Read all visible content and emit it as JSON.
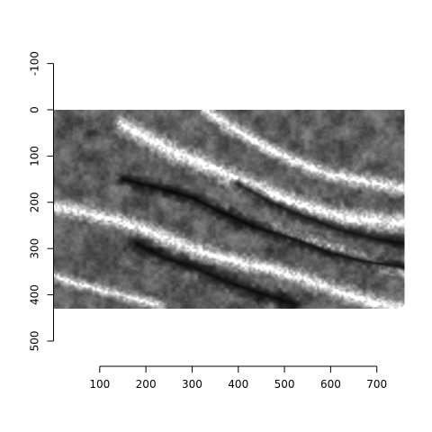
{
  "chart_data": {
    "type": "heatmap",
    "title": "",
    "xlabel": "",
    "ylabel": "",
    "colormap": "grayscale",
    "image_extent": {
      "x": [
        0,
        760
      ],
      "y": [
        0,
        430
      ]
    },
    "xlim": [
      0,
      760
    ],
    "ylim": [
      -100,
      500
    ],
    "y_reversed": true,
    "x_ticks": [
      100,
      200,
      300,
      400,
      500,
      600,
      700
    ],
    "x_tick_labels": [
      "100",
      "200",
      "300",
      "400",
      "500",
      "600",
      "700"
    ],
    "y_ticks": [
      -100,
      0,
      100,
      200,
      300,
      400,
      500
    ],
    "y_tick_labels": [
      "-100",
      "0",
      "100",
      "200",
      "300",
      "400",
      "500"
    ],
    "grid": false,
    "legend": "none",
    "cloud_bands": [
      {
        "points": [
          [
            330,
            0
          ],
          [
            390,
            40
          ],
          [
            450,
            75
          ],
          [
            520,
            110
          ],
          [
            600,
            140
          ],
          [
            700,
            160
          ],
          [
            760,
            170
          ]
        ],
        "width": 35,
        "brightness": 0.95
      },
      {
        "points": [
          [
            150,
            30
          ],
          [
            200,
            60
          ],
          [
            260,
            90
          ],
          [
            320,
            115
          ],
          [
            400,
            150
          ],
          [
            480,
            185
          ],
          [
            560,
            215
          ],
          [
            640,
            235
          ],
          [
            700,
            240
          ],
          [
            760,
            245
          ]
        ],
        "width": 45,
        "brightness": 1.0
      },
      {
        "points": [
          [
            0,
            210
          ],
          [
            60,
            220
          ],
          [
            140,
            240
          ],
          [
            210,
            265
          ],
          [
            270,
            290
          ],
          [
            330,
            310
          ],
          [
            400,
            330
          ],
          [
            470,
            345
          ],
          [
            540,
            365
          ],
          [
            620,
            395
          ],
          [
            700,
            420
          ],
          [
            760,
            430
          ]
        ],
        "width": 40,
        "brightness": 0.95
      },
      {
        "points": [
          [
            0,
            360
          ],
          [
            60,
            380
          ],
          [
            120,
            395
          ],
          [
            180,
            410
          ],
          [
            230,
            425
          ]
        ],
        "width": 30,
        "brightness": 0.85
      },
      {
        "points": [
          [
            480,
            260
          ],
          [
            540,
            280
          ],
          [
            600,
            300
          ],
          [
            660,
            320
          ],
          [
            720,
            340
          ],
          [
            760,
            350
          ]
        ],
        "width": 30,
        "brightness": 0.9
      }
    ],
    "dark_zones": [
      {
        "points": [
          [
            150,
            150
          ],
          [
            230,
            170
          ],
          [
            300,
            190
          ],
          [
            360,
            220
          ],
          [
            440,
            255
          ],
          [
            520,
            280
          ],
          [
            600,
            310
          ],
          [
            680,
            330
          ],
          [
            760,
            340
          ]
        ],
        "width": 20,
        "darkness": 0.9
      },
      {
        "points": [
          [
            180,
            290
          ],
          [
            240,
            320
          ],
          [
            300,
            340
          ],
          [
            370,
            370
          ],
          [
            440,
            395
          ],
          [
            520,
            420
          ]
        ],
        "width": 25,
        "darkness": 0.85
      },
      {
        "points": [
          [
            400,
            160
          ],
          [
            470,
            200
          ],
          [
            540,
            230
          ],
          [
            620,
            260
          ],
          [
            700,
            280
          ],
          [
            760,
            290
          ]
        ],
        "width": 18,
        "darkness": 0.8
      }
    ]
  }
}
